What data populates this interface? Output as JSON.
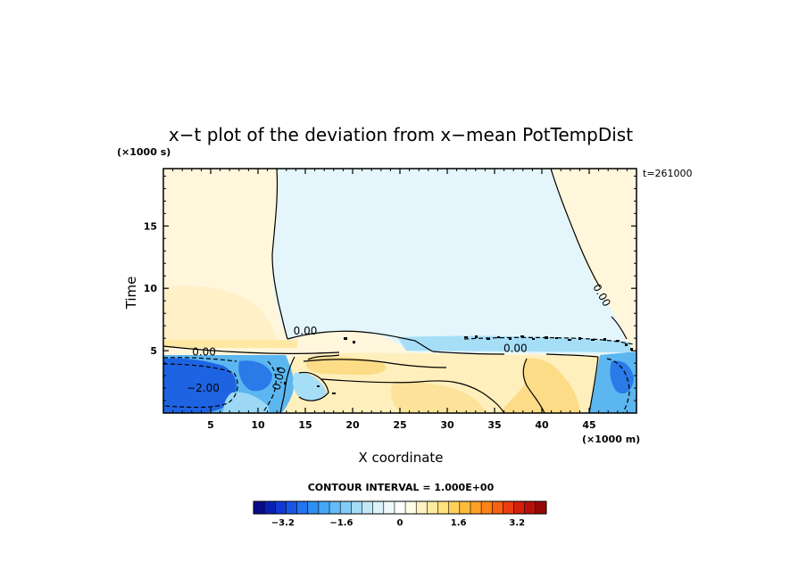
{
  "chart_data": {
    "type": "heatmap",
    "title": "x−t plot of the deviation from x−mean PotTempDist",
    "xlabel": "X coordinate",
    "ylabel": "Time",
    "x_unit": "(×1000 m)",
    "y_unit": "(×1000 s)",
    "time_label": "t=261000",
    "xlim": [
      0,
      50
    ],
    "ylim": [
      0,
      19.6
    ],
    "x_ticks": [
      5,
      10,
      15,
      20,
      25,
      30,
      35,
      40,
      45
    ],
    "y_ticks": [
      5,
      10,
      15
    ],
    "contour_labels": [
      {
        "text": "0.00",
        "x": 15.0,
        "y": 6.3
      },
      {
        "text": "0.00",
        "x": 4.3,
        "y": 4.6
      },
      {
        "text": "0.00",
        "x": 37.2,
        "y": 4.9
      },
      {
        "text": "0.00",
        "x": 46.0,
        "y": 9.3
      },
      {
        "text": "0.00",
        "x": 12.6,
        "y": 2.7
      },
      {
        "text": "−2.00",
        "x": 4.2,
        "y": 1.7
      }
    ],
    "contour_interval_label": "CONTOUR INTERVAL = 1.000E+00",
    "colorbar": {
      "range": [
        -4.0,
        4.0
      ],
      "tick_values": [
        -3.2,
        -1.6,
        0,
        1.6,
        3.2
      ],
      "tick_labels": [
        "−3.2",
        "−1.6",
        "0",
        "1.6",
        "3.2"
      ],
      "colors": [
        "#0a0a8c",
        "#0c1fb4",
        "#1238d4",
        "#1a56e6",
        "#2475ee",
        "#2f90f2",
        "#45a8f5",
        "#62bcf7",
        "#82cdf8",
        "#a3dcf8",
        "#c2e8f8",
        "#dcf2f8",
        "#eefafb",
        "#ffffff",
        "#fffbe6",
        "#fff3c2",
        "#ffeca0",
        "#ffe27c",
        "#ffd15a",
        "#ffbc3c",
        "#ffa126",
        "#ff8418",
        "#f86012",
        "#ea3e10",
        "#d6200c",
        "#b8110a",
        "#960808"
      ]
    },
    "background_colors": {
      "pale_blue": "#e4f6fb",
      "pale_yellow": "#fff6dc",
      "light_yellow": "#fff0c0",
      "yellow": "#fee8a4",
      "orange_yellow": "#fcdc84",
      "blue": "#58b4f0",
      "dark_blue": "#1e64e2",
      "light_blue": "#9cd8f6"
    }
  }
}
